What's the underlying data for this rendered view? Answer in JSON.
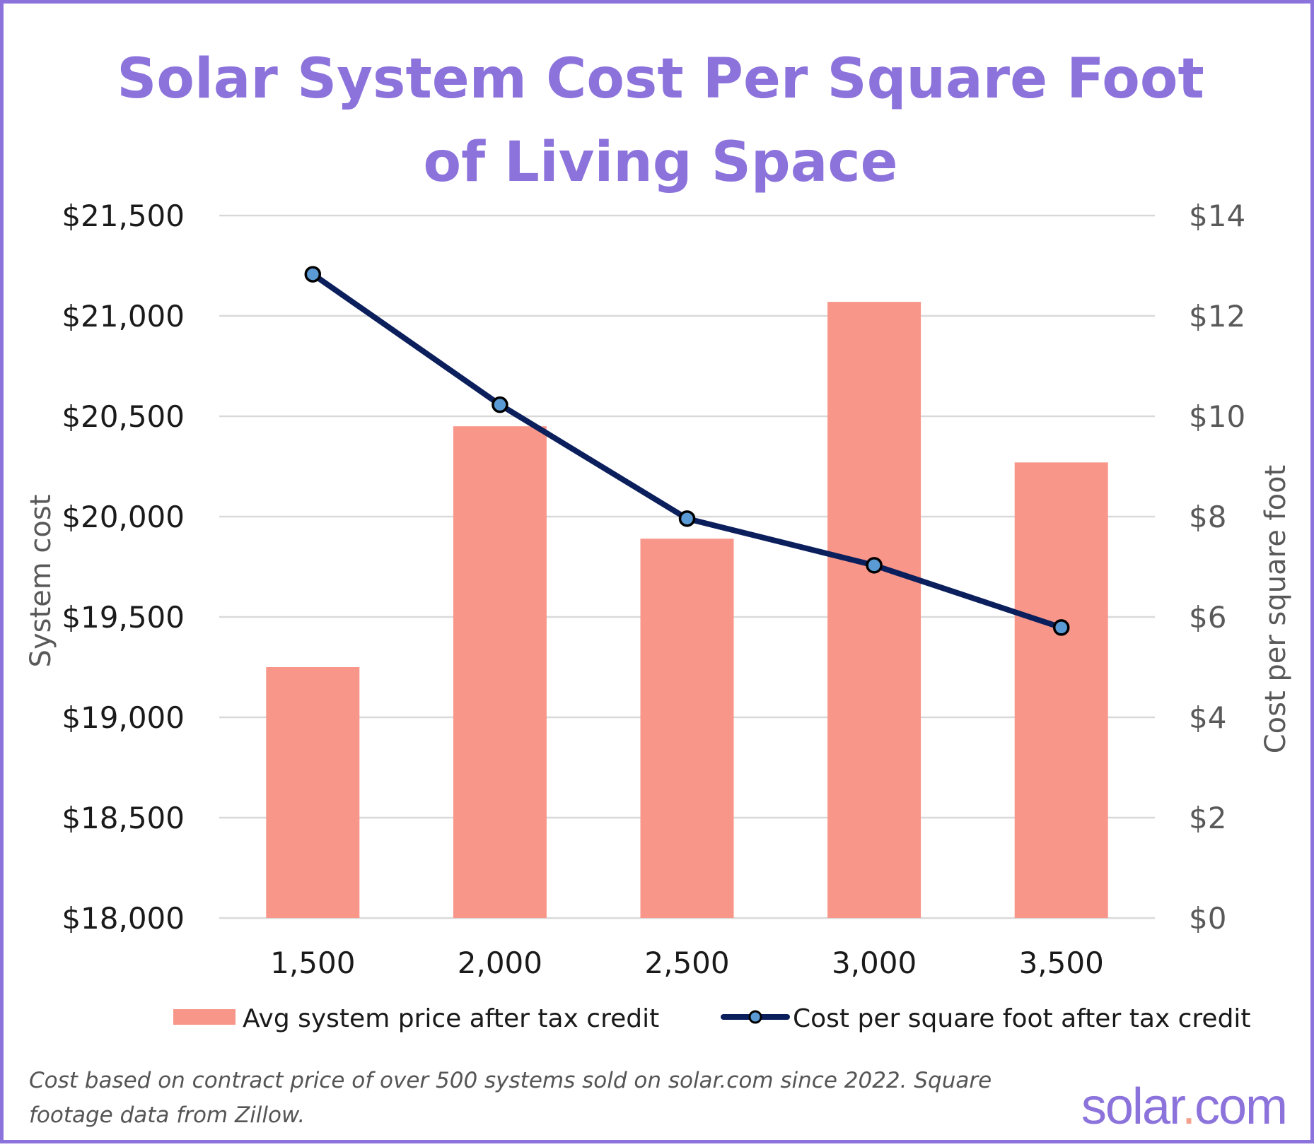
{
  "chart_data": {
    "type": "bar",
    "title_lines": [
      "Solar System Cost Per Square Foot",
      "of Living Space"
    ],
    "categories": [
      "1,500",
      "2,000",
      "2,500",
      "3,000",
      "3,500"
    ],
    "series": [
      {
        "name": "Avg system price after tax credit",
        "type": "bar",
        "axis": "left",
        "color": "#f8968a",
        "values": [
          19250,
          20450,
          19890,
          21070,
          20270
        ]
      },
      {
        "name": "Cost per square foot after tax credit",
        "type": "line",
        "axis": "right",
        "color": "#0b1f5c",
        "marker_color": "#5b9bd5",
        "values": [
          12.83,
          10.23,
          7.96,
          7.03,
          5.79
        ]
      }
    ],
    "y_left": {
      "label": "System cost",
      "ylim": [
        18000,
        21500
      ],
      "ticks": [
        "$18,000",
        "$18,500",
        "$19,000",
        "$19,500",
        "$20,000",
        "$20,500",
        "$21,000",
        "$21,500"
      ]
    },
    "y_right": {
      "label": "Cost per square foot",
      "ylim": [
        0,
        14
      ],
      "ticks": [
        "$0",
        "$2",
        "$4",
        "$6",
        "$8",
        "$10",
        "$12",
        "$14"
      ]
    },
    "grid": true,
    "legend_position": "bottom"
  },
  "footnote": "Cost based on contract price of over 500 systems sold on solar.com since 2022. Square footage data from Zillow.",
  "brand": {
    "name_before_dot": "solar",
    "dot": ".",
    "name_after_dot": "com",
    "color": "#8c73dc"
  }
}
